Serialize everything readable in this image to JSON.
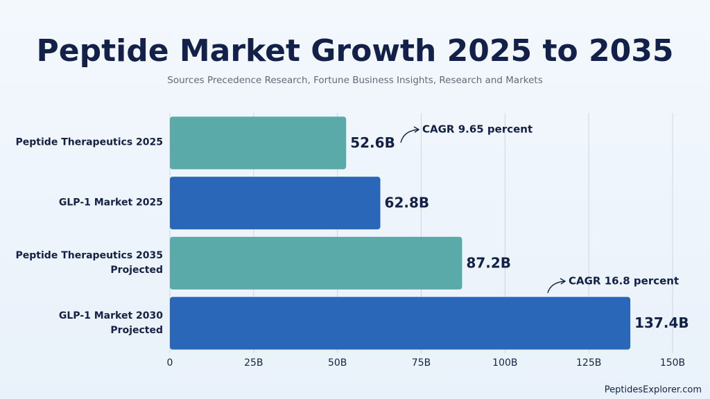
{
  "chart_data": {
    "type": "hbar",
    "title": "Peptide Market Growth 2025 to 2035",
    "subtitle": "Sources Precedence Research, Fortune Business Insights, Research and Markets",
    "categories": [
      "Peptide Therapeutics 2025",
      "GLP-1 Market 2025",
      "Peptide Therapeutics 2035 Projected",
      "GLP-1 Market 2030 Projected"
    ],
    "values": [
      52.6,
      62.8,
      87.2,
      137.4
    ],
    "value_labels": [
      "52.6B",
      "62.8B",
      "87.2B",
      "137.4B"
    ],
    "colors": [
      "#5aaaa9",
      "#2b67b8",
      "#5aaaa9",
      "#2b67b8"
    ],
    "xlim": [
      0,
      150
    ],
    "xticks": [
      0,
      {
        "value": 25,
        "label": "25B"
      },
      {
        "value": 50,
        "label": "50B"
      },
      {
        "value": 75,
        "label": "75B"
      },
      {
        "value": 100,
        "label": "100B"
      },
      {
        "value": 125,
        "label": "125B"
      },
      {
        "value": 150,
        "label": "150B"
      }
    ],
    "grid": true,
    "annotations": [
      "CAGR 9.65 percent",
      "CAGR 16.8 percent"
    ],
    "watermark": "PeptidesExplorer.com"
  }
}
